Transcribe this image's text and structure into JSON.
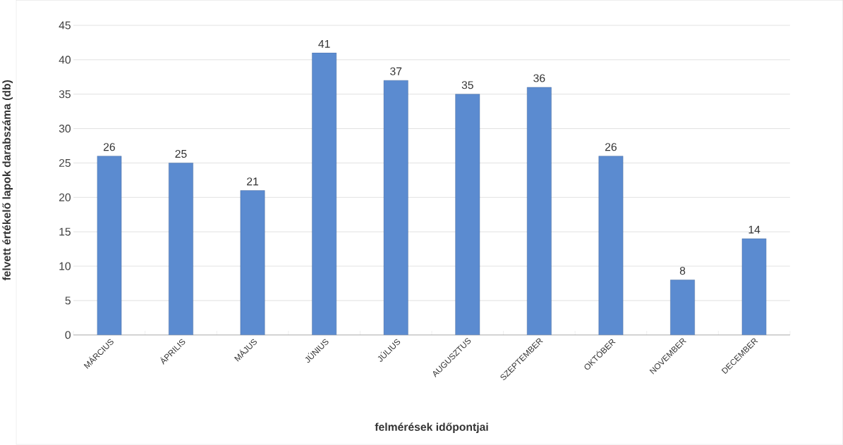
{
  "chart_data": {
    "type": "bar",
    "xlabel": "felmérések időpontjai",
    "ylabel": "felvett értékelő lapok  darabszáma (db)",
    "categories": [
      "MÁRCIUS",
      "ÁPRILIS",
      "MÁJUS",
      "JÚNIUS",
      "JÚLIUS",
      "AUGUSZTUS",
      "SZEPTEMBER",
      "OKTÓBER",
      "NOVEMBER",
      "DECEMBER"
    ],
    "values": [
      26,
      25,
      21,
      41,
      37,
      35,
      36,
      26,
      8,
      14
    ],
    "color": "#5b8bd0",
    "ylim": [
      0,
      45
    ],
    "yticks": [
      0,
      5,
      10,
      15,
      20,
      25,
      30,
      35,
      40,
      45
    ],
    "grid": "y",
    "data_labels": true
  }
}
